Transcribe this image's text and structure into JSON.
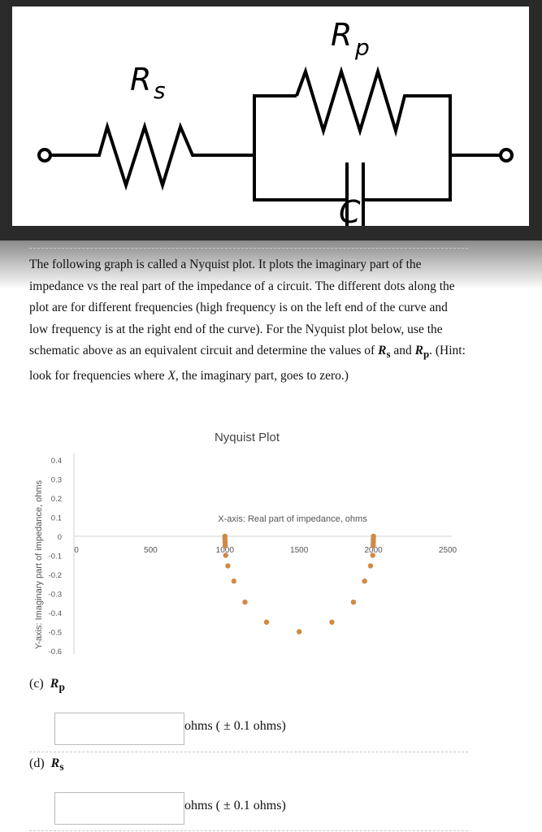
{
  "circuit": {
    "labels": {
      "rs": "R",
      "rs_sub": "s",
      "rp": "R",
      "rp_sub": "p",
      "c": "C"
    }
  },
  "paragraph": {
    "text_1": "The following graph is called a Nyquist plot. It plots the imaginary part of the impedance vs the real part of the impedance of a circuit. The different dots along the plot are for different frequencies (high frequency is on the left end of the curve and low frequency is at the right end of the curve). For the Nyquist plot below, use the schematic above as an equivalent circuit and determine the values of ",
    "rs": "R",
    "rs_sub": "s",
    "and": " and ",
    "rp": "R",
    "rp_sub": "p",
    "text_2": ". (Hint: look for frequencies where ",
    "x": "X",
    "text_3": ", the imaginary part, goes to zero.)"
  },
  "chart_data": {
    "type": "scatter",
    "title": "Nyquist Plot",
    "xlabel": "X-axis: Real  part of impedance, ohms",
    "ylabel": "Y-axis: Imaginary part of impedance, ohms",
    "xlim": [
      0,
      2500
    ],
    "ylim": [
      -0.6,
      0.4
    ],
    "xticks": [
      "0",
      "500",
      "1000",
      "1500",
      "2000",
      "2500"
    ],
    "yticks": [
      "0.4",
      "0.3",
      "0.2",
      "0.1",
      "0",
      "-0.1",
      "-0.2",
      "-0.3",
      "-0.4",
      "-0.5",
      "-0.6"
    ],
    "grid": false,
    "marker_color": "#d08a45",
    "points": [
      [
        1000,
        0
      ],
      [
        1000,
        -0.01
      ],
      [
        1001,
        -0.02
      ],
      [
        1001,
        -0.03
      ],
      [
        1002,
        -0.04
      ],
      [
        1002,
        -0.05
      ],
      [
        1005,
        -0.1
      ],
      [
        1020,
        -0.155
      ],
      [
        1060,
        -0.235
      ],
      [
        1135,
        -0.345
      ],
      [
        1280,
        -0.45
      ],
      [
        1500,
        -0.5
      ],
      [
        1720,
        -0.45
      ],
      [
        1865,
        -0.345
      ],
      [
        1940,
        -0.235
      ],
      [
        1980,
        -0.155
      ],
      [
        1995,
        -0.1
      ],
      [
        1998,
        -0.05
      ],
      [
        1998,
        -0.04
      ],
      [
        1999,
        -0.03
      ],
      [
        1999,
        -0.02
      ],
      [
        2000,
        -0.01
      ],
      [
        2000,
        0
      ]
    ]
  },
  "questions": [
    {
      "label": "(c)",
      "var": "R",
      "sub": "p",
      "value": "",
      "unit": "ohms ( ± 0.1 ohms)"
    },
    {
      "label": "(d)",
      "var": "R",
      "sub": "s",
      "value": "",
      "unit": "ohms ( ± 0.1 ohms)"
    }
  ]
}
